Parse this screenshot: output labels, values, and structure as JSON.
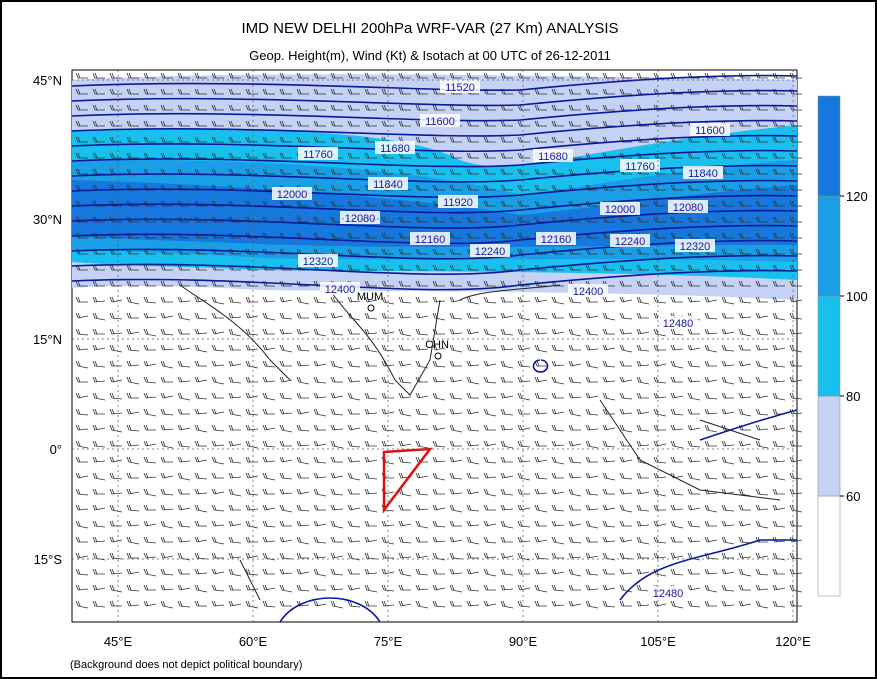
{
  "header": {
    "title": "IMD NEW DELHI 200hPa WRF-VAR (27 Km) ANALYSIS",
    "subtitle": "Geop. Height(m), Wind (Kt) & Isotach  at 00 UTC of 26-12-2011"
  },
  "map": {
    "lat_labels": [
      "45°N",
      "30°N",
      "15°N",
      "0°",
      "15°S"
    ],
    "lon_labels": [
      "45°E",
      "60°E",
      "75°E",
      "90°E",
      "105°E",
      "120°E"
    ],
    "contour_labels": [
      "11520",
      "11600",
      "11600",
      "11680",
      "11680",
      "11760",
      "11760",
      "11840",
      "11840",
      "11920",
      "12000",
      "12000",
      "12080",
      "12080",
      "12160",
      "12160",
      "12240",
      "12240",
      "12320",
      "12320",
      "12400",
      "12400",
      "12480",
      "12480"
    ],
    "stations": [
      "MUM",
      "CHN"
    ],
    "footnote": "(Background does not depict political boundary)"
  },
  "colorbar": {
    "lim": [
      40,
      140
    ],
    "ticks": [
      60,
      80,
      100,
      120
    ],
    "colors": [
      "#ffffff",
      "#c6d2f5",
      "#19c0ee",
      "#1a9fe6",
      "#1678dc"
    ]
  }
}
